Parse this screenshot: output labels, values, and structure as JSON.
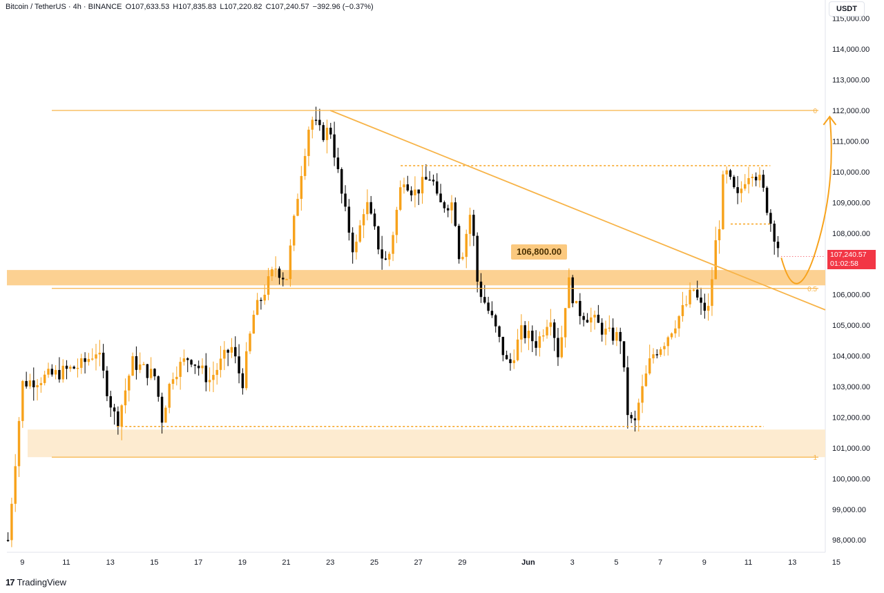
{
  "header": {
    "symbol": "Bitcoin / TetherUS · 4h · BINANCE",
    "open": "O107,633.53",
    "high": "H107,835.83",
    "low": "L107,220.82",
    "close": "C107,240.57",
    "change": "−392.96 (−0.37%)"
  },
  "axis": {
    "unit": "USDT"
  },
  "price_tag": {
    "price": "107,240.57",
    "countdown": "01:02:58"
  },
  "annotation": {
    "level_label": "106,800.00"
  },
  "brand": {
    "name": "TradingView",
    "logo": "17"
  },
  "colors": {
    "up": "#f7a21b",
    "down": "#000000",
    "zone": "#fbc97f",
    "zone_light": "#fdebd0",
    "line": "#f7b347",
    "price_tag": "#f23645"
  },
  "chart_data": {
    "type": "candlestick",
    "title": "Bitcoin / TetherUS · 4h · BINANCE",
    "y_range": [
      97600,
      115600
    ],
    "y_ticks": [
      98000,
      99000,
      100000,
      101000,
      102000,
      103000,
      104000,
      105000,
      106000,
      107000,
      108000,
      109000,
      110000,
      111000,
      112000,
      113000,
      114000,
      115000
    ],
    "y_tick_labels": [
      "98,000.00",
      "99,000.00",
      "100,000.00",
      "101,000.00",
      "102,000.00",
      "103,000.00",
      "104,000.00",
      "105,000.00",
      "106,000.00",
      "107,000.00",
      "108,000.00",
      "109,000.00",
      "110,000.00",
      "111,000.00",
      "112,000.00",
      "113,000.00",
      "114,000.00",
      "115,000.00"
    ],
    "x_range_days": [
      8.3,
      45.5
    ],
    "x_tick_labels": [
      "9",
      "11",
      "13",
      "15",
      "17",
      "19",
      "21",
      "23",
      "25",
      "27",
      "29",
      "Jun",
      "3",
      "5",
      "7",
      "9",
      "11",
      "13",
      "15"
    ],
    "x_tick_days": [
      9,
      11,
      13,
      15,
      17,
      19,
      21,
      23,
      25,
      27,
      29,
      32,
      34,
      36,
      38,
      40,
      42,
      44,
      46
    ],
    "anchors": [
      {
        "day": 9.0,
        "price": 103100
      },
      {
        "day": 10.5,
        "price": 103400
      },
      {
        "day": 11.7,
        "price": 103700
      },
      {
        "day": 12.4,
        "price": 104200
      },
      {
        "day": 13.0,
        "price": 102500
      },
      {
        "day": 13.3,
        "price": 101800
      },
      {
        "day": 14.0,
        "price": 103800
      },
      {
        "day": 15.1,
        "price": 103300
      },
      {
        "day": 15.3,
        "price": 101800
      },
      {
        "day": 15.8,
        "price": 103400
      },
      {
        "day": 16.6,
        "price": 104000
      },
      {
        "day": 17.5,
        "price": 103200
      },
      {
        "day": 18.5,
        "price": 104300
      },
      {
        "day": 19.0,
        "price": 103100
      },
      {
        "day": 19.5,
        "price": 105300
      },
      {
        "day": 20.5,
        "price": 106900
      },
      {
        "day": 21.0,
        "price": 106500
      },
      {
        "day": 21.6,
        "price": 109700
      },
      {
        "day": 22.1,
        "price": 111800
      },
      {
        "day": 22.6,
        "price": 111200
      },
      {
        "day": 23.0,
        "price": 111400
      },
      {
        "day": 23.6,
        "price": 108900
      },
      {
        "day": 24.1,
        "price": 107300
      },
      {
        "day": 24.6,
        "price": 109100
      },
      {
        "day": 25.3,
        "price": 107300
      },
      {
        "day": 25.6,
        "price": 107000
      },
      {
        "day": 26.3,
        "price": 109900
      },
      {
        "day": 26.8,
        "price": 109300
      },
      {
        "day": 27.6,
        "price": 109900
      },
      {
        "day": 27.9,
        "price": 108900
      },
      {
        "day": 28.6,
        "price": 109000
      },
      {
        "day": 28.9,
        "price": 107000
      },
      {
        "day": 29.4,
        "price": 108800
      },
      {
        "day": 29.7,
        "price": 106300
      },
      {
        "day": 30.4,
        "price": 105100
      },
      {
        "day": 31.1,
        "price": 103600
      },
      {
        "day": 31.7,
        "price": 104800
      },
      {
        "day": 32.4,
        "price": 104400
      },
      {
        "day": 33.0,
        "price": 105400
      },
      {
        "day": 33.4,
        "price": 103900
      },
      {
        "day": 33.8,
        "price": 106500
      },
      {
        "day": 34.2,
        "price": 105500
      },
      {
        "day": 34.9,
        "price": 105200
      },
      {
        "day": 35.6,
        "price": 104700
      },
      {
        "day": 36.2,
        "price": 104600
      },
      {
        "day": 36.5,
        "price": 102200
      },
      {
        "day": 36.8,
        "price": 101600
      },
      {
        "day": 37.0,
        "price": 102400
      },
      {
        "day": 37.6,
        "price": 104000
      },
      {
        "day": 38.2,
        "price": 104500
      },
      {
        "day": 38.6,
        "price": 105000
      },
      {
        "day": 39.2,
        "price": 105700
      },
      {
        "day": 39.5,
        "price": 106200
      },
      {
        "day": 39.8,
        "price": 105600
      },
      {
        "day": 40.2,
        "price": 105500
      },
      {
        "day": 40.5,
        "price": 107600
      },
      {
        "day": 40.7,
        "price": 108400
      },
      {
        "day": 40.9,
        "price": 110100
      },
      {
        "day": 41.5,
        "price": 109100
      },
      {
        "day": 41.9,
        "price": 109900
      },
      {
        "day": 42.2,
        "price": 110100
      },
      {
        "day": 42.6,
        "price": 109600
      },
      {
        "day": 43.0,
        "price": 108400
      },
      {
        "day": 43.3,
        "price": 107700
      },
      {
        "day": 43.5,
        "price": 107240
      }
    ],
    "levels": {
      "top": 112000,
      "zone_high": 106800,
      "zone_low": 106300,
      "demand_high": 101600,
      "demand_low": 100700,
      "support_dotted": 101700,
      "resistance_dotted": 110200,
      "minor_dotted": 108300,
      "fib_0": "0",
      "fib_05": "0.5",
      "fib_1": "1"
    },
    "trendline": [
      {
        "day": 23.0,
        "price": 112000
      },
      {
        "day": 45.5,
        "price": 105500
      }
    ],
    "projection": [
      {
        "day": 43.5,
        "price": 107200
      },
      {
        "day": 44.2,
        "price": 106500
      },
      {
        "day": 45.1,
        "price": 107500
      },
      {
        "day": 45.7,
        "price": 111800
      }
    ],
    "last_price": 107240.57
  }
}
